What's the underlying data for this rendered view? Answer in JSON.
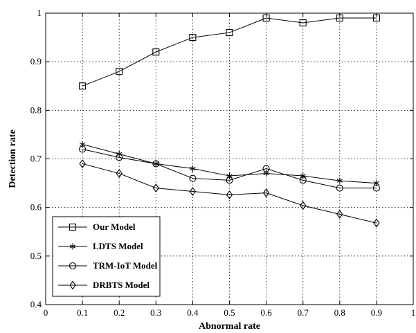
{
  "chart_data": {
    "type": "line",
    "title": "",
    "xlabel": "Abnormal rate",
    "ylabel": "Detection rate",
    "xlim": [
      0,
      1
    ],
    "ylim": [
      0.4,
      1
    ],
    "x_ticks": [
      "0",
      "0.1",
      "0.2",
      "0.3",
      "0.4",
      "0.5",
      "0.6",
      "0.7",
      "0.8",
      "0.9",
      "1"
    ],
    "y_ticks": [
      "0.4",
      "0.5",
      "0.6",
      "0.7",
      "0.8",
      "0.9",
      "1"
    ],
    "grid": true,
    "legend_position": "bottom-left",
    "x": [
      0.1,
      0.2,
      0.3,
      0.4,
      0.5,
      0.6,
      0.7,
      0.8,
      0.9
    ],
    "series": [
      {
        "name": "Our Model",
        "marker": "square",
        "values": [
          0.85,
          0.88,
          0.92,
          0.95,
          0.96,
          0.99,
          0.98,
          0.99,
          0.99
        ]
      },
      {
        "name": "LDTS Model",
        "marker": "asterisk",
        "values": [
          0.73,
          0.71,
          0.69,
          0.68,
          0.665,
          0.67,
          0.665,
          0.655,
          0.65
        ]
      },
      {
        "name": "TRM-IoT Model",
        "marker": "circle",
        "values": [
          0.72,
          0.703,
          0.69,
          0.66,
          0.656,
          0.68,
          0.656,
          0.64,
          0.64
        ]
      },
      {
        "name": "DRBTS Model",
        "marker": "diamond",
        "values": [
          0.69,
          0.67,
          0.64,
          0.633,
          0.626,
          0.63,
          0.604,
          0.586,
          0.568
        ]
      }
    ],
    "line_color": "#000000"
  }
}
